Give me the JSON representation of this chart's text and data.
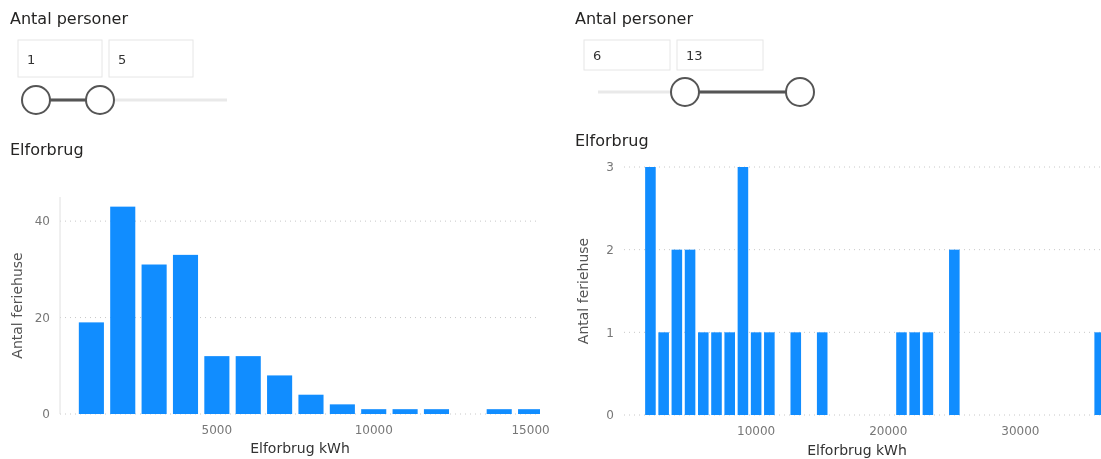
{
  "chart_data": [
    {
      "type": "other",
      "title": "Antal personer",
      "annotations": [
        "1",
        "5"
      ]
    },
    {
      "type": "bar",
      "title": "Elforbrug",
      "xlabel": "Elforbrug kWh",
      "ylabel": "Antal feriehuse",
      "x": [
        1000,
        2000,
        3000,
        4000,
        5000,
        6000,
        7000,
        8000,
        9000,
        10000,
        11000,
        12000,
        14000,
        15000
      ],
      "values": [
        19,
        43,
        31,
        33,
        12,
        12,
        8,
        4,
        2,
        1,
        1,
        1,
        1,
        1
      ],
      "color": "#118dff",
      "xlim": [
        0,
        15300
      ],
      "xticks": [
        5000,
        10000,
        15000
      ],
      "ylim": [
        0,
        45
      ],
      "yticks": [
        0,
        20,
        40
      ],
      "grid": "y"
    },
    {
      "type": "other",
      "title": "Antal personer",
      "annotations": [
        "6",
        "13"
      ]
    },
    {
      "type": "bar",
      "title": "Elforbrug",
      "xlabel": "Elforbrug kWh",
      "ylabel": "Antal feriehuse",
      "x": [
        2000,
        3000,
        4000,
        5000,
        6000,
        7000,
        8000,
        9000,
        10000,
        11000,
        13000,
        15000,
        21000,
        22000,
        23000,
        25000,
        36000
      ],
      "values": [
        3,
        1,
        2,
        2,
        1,
        1,
        1,
        3,
        1,
        1,
        1,
        1,
        1,
        1,
        1,
        2,
        1
      ],
      "color": "#118dff",
      "xlim": [
        0,
        36100
      ],
      "xticks": [
        10000,
        20000,
        30000
      ],
      "ylim": [
        0,
        3
      ],
      "yticks": [
        0,
        1,
        2,
        3
      ],
      "grid": "y"
    }
  ]
}
